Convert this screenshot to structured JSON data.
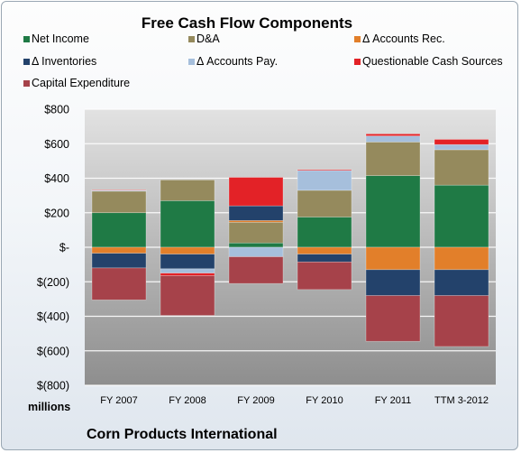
{
  "chart_data": {
    "type": "bar",
    "stacked": true,
    "title": "Free Cash Flow Components",
    "ylabel": "millions",
    "footer": "Corn Products International",
    "categories": [
      "FY 2007",
      "FY 2008",
      "FY 2009",
      "FY 2010",
      "FY 2011",
      "TTM 3-2012"
    ],
    "ylim": [
      -800,
      800
    ],
    "yticks": [
      -800,
      -600,
      -400,
      -200,
      0,
      200,
      400,
      600,
      800
    ],
    "ytick_labels": [
      "$(800)",
      "$(600)",
      "$(400)",
      "$(200)",
      "$-",
      "$200",
      "$400",
      "$600",
      "$800"
    ],
    "grid": true,
    "legend_position": "top",
    "series": [
      {
        "name": "Net Income",
        "color": "#1f7a45",
        "values": [
          200,
          270,
          25,
          175,
          415,
          360
        ]
      },
      {
        "name": "D&A",
        "color": "#958a5d",
        "values": [
          125,
          120,
          120,
          155,
          195,
          205
        ]
      },
      {
        "name": "Δ Accounts Rec.",
        "color": "#e27f2a",
        "values": [
          -35,
          -40,
          10,
          -40,
          -130,
          -130
        ]
      },
      {
        "name": "Δ Inventories",
        "color": "#23426b",
        "values": [
          -85,
          -85,
          85,
          -45,
          -150,
          -150
        ]
      },
      {
        "name": "Δ Accounts Pay.",
        "color": "#a6bfdc",
        "values": [
          5,
          -25,
          -55,
          115,
          35,
          30
        ]
      },
      {
        "name": "Questionable Cash Sources",
        "color": "#e32227",
        "values": [
          3,
          -15,
          165,
          5,
          12,
          30
        ]
      },
      {
        "name": "Capital Expenditure",
        "color": "#a6424a",
        "values": [
          -185,
          -230,
          -155,
          -160,
          -265,
          -295
        ]
      }
    ]
  }
}
